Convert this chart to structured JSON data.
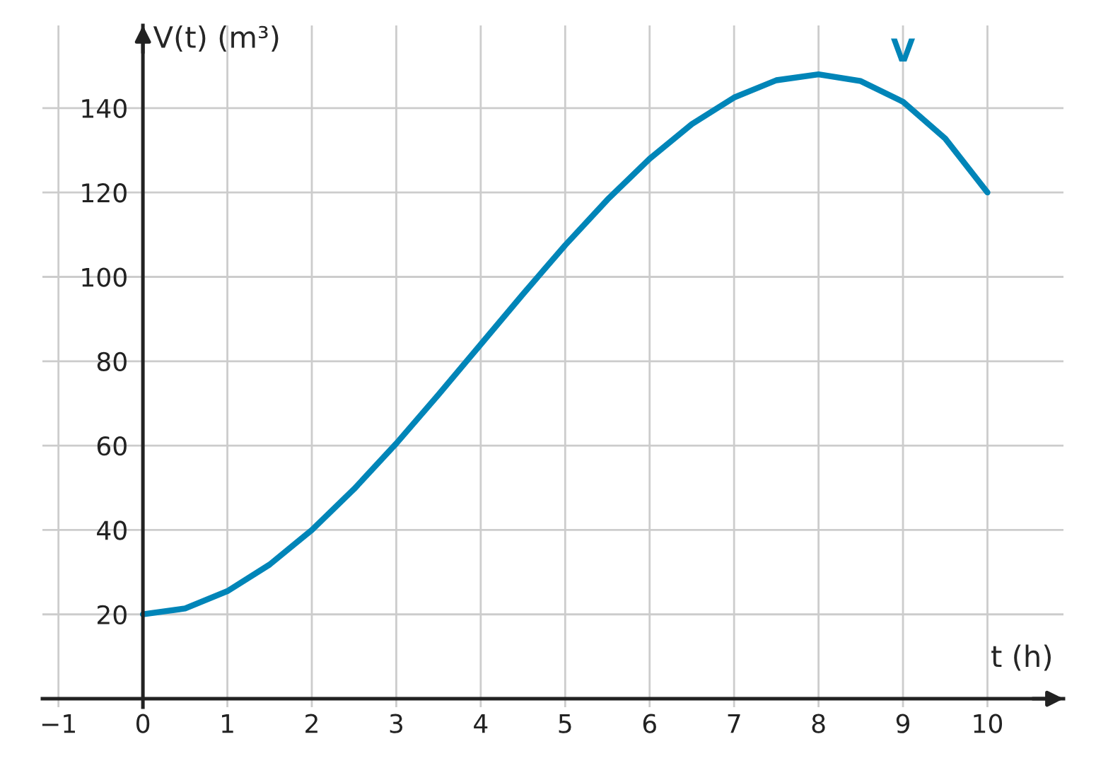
{
  "chart_data": {
    "type": "line",
    "xlabel": "t (h)",
    "ylabel": "V(t) (m³)",
    "x": [
      0,
      0.5,
      1,
      1.5,
      2,
      2.5,
      3,
      3.5,
      4,
      4.5,
      5,
      5.5,
      6,
      6.5,
      7,
      7.5,
      8,
      8.5,
      9,
      9.5,
      10
    ],
    "series": [
      {
        "name": "V",
        "color": "#0085b8",
        "values": [
          20,
          21.4,
          25.5,
          31.8,
          40,
          49.7,
          60.5,
          72.1,
          84,
          95.9,
          107.5,
          118.3,
          128,
          136.2,
          142.5,
          146.6,
          148,
          146.4,
          141.5,
          132.8,
          120
        ]
      }
    ],
    "xlim": [
      -1.19,
      10.9
    ],
    "ylim": [
      -2,
      159.6
    ],
    "xticks": [
      {
        "value": -1,
        "label": "−1"
      },
      {
        "value": 0,
        "label": "0"
      },
      1,
      2,
      3,
      4,
      5,
      6,
      7,
      8,
      9,
      10
    ],
    "yticks": [
      20,
      40,
      60,
      80,
      100,
      120,
      140
    ],
    "grid": true,
    "marker": "none",
    "line_style": "solid"
  }
}
